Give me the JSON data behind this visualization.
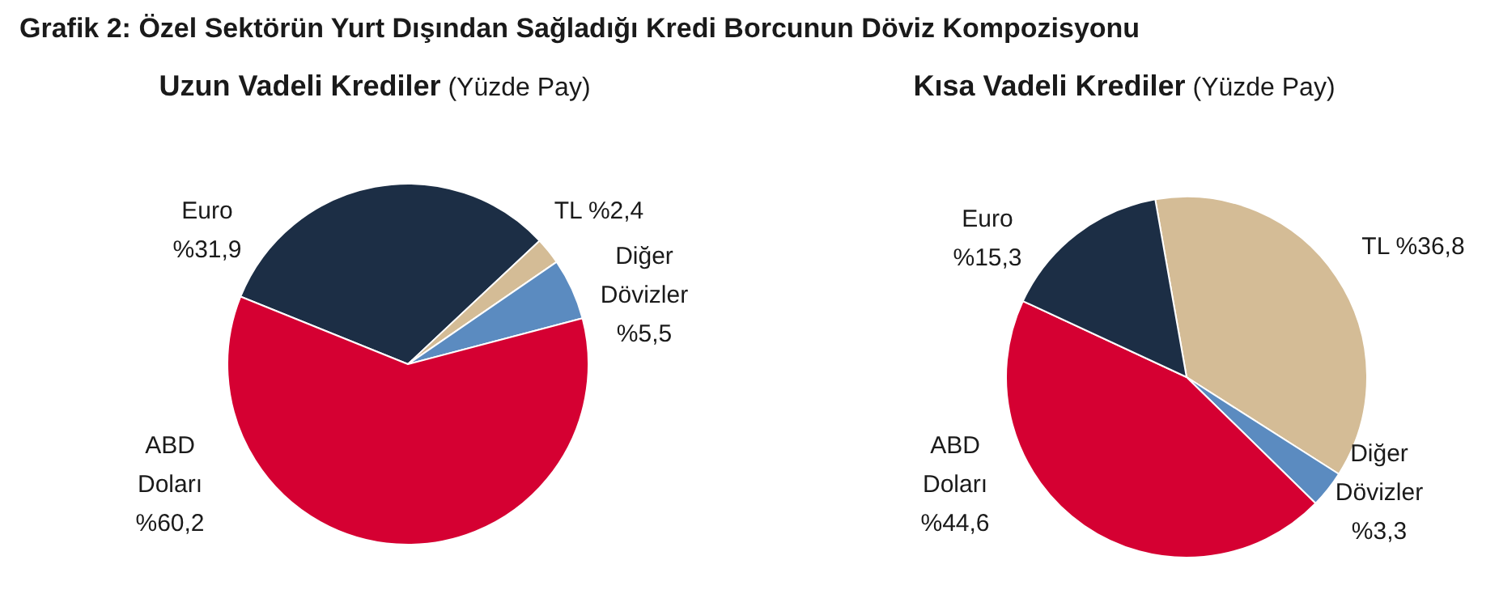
{
  "chart_data": [
    {
      "type": "pie",
      "title": "Grafik 2: Özel Sektörün Yurt Dışından Sağladığı Kredi Borcunun Döviz Kompozisyonu",
      "subtitle": "Uzun Vadeli Krediler (Yüzde Pay)",
      "categories": [
        "Euro",
        "TL",
        "Diğer Dövizler",
        "ABD Doları"
      ],
      "values": [
        31.9,
        2.4,
        5.5,
        60.2
      ],
      "colors": [
        "#1c2e45",
        "#d4bc96",
        "#5b8bc0",
        "#d50032"
      ],
      "value_labels": [
        "%31,9",
        "%2,4",
        "%5,5",
        "%60,2"
      ],
      "legend": false
    },
    {
      "type": "pie",
      "subtitle": "Kısa Vadeli Krediler (Yüzde Pay)",
      "categories": [
        "TL",
        "Diğer Dövizler",
        "ABD Doları",
        "Euro"
      ],
      "values": [
        36.8,
        3.3,
        44.6,
        15.3
      ],
      "colors": [
        "#d4bc96",
        "#5b8bc0",
        "#d50032",
        "#1c2e45"
      ],
      "value_labels": [
        "%36,8",
        "%3,3",
        "%44,6",
        "%15,3"
      ],
      "legend": false
    }
  ]
}
